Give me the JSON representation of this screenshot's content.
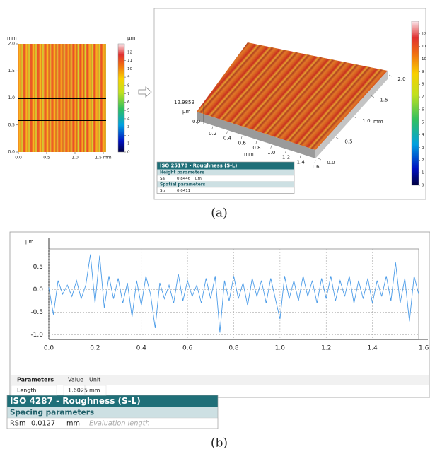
{
  "panel_a": {
    "map_2d": {
      "y_unit": "mm",
      "color_unit": "µm",
      "ylim": [
        0,
        2
      ],
      "yticks": [
        {
          "value": 0,
          "label": "0.0"
        },
        {
          "value": 0.5,
          "label": "0.5"
        },
        {
          "value": 1,
          "label": "1.0"
        },
        {
          "value": 1.5,
          "label": "1.5"
        },
        {
          "value": 2,
          "label": "2.0"
        }
      ],
      "xlim": [
        0,
        1.55
      ],
      "xticks": [
        {
          "value": 0,
          "label": "0.0"
        },
        {
          "value": 0.5,
          "label": "0.5"
        },
        {
          "value": 1,
          "label": "1.0"
        },
        {
          "value": 1.5,
          "label": "1.5 mm"
        }
      ],
      "clim": [
        0,
        13
      ],
      "cticks": [
        0,
        1,
        2,
        3,
        4,
        5,
        6,
        7,
        8,
        9,
        10,
        11,
        12
      ]
    },
    "map_3d": {
      "z_max_label": "12.9859",
      "z_unit": "µm",
      "z_min_label": "0.0",
      "x_unit": "mm",
      "y_unit": "mm",
      "xlim": [
        0,
        1.6
      ],
      "xticks": [
        {
          "value": 0,
          "label": "0.0"
        },
        {
          "value": 0.2,
          "label": "0.2"
        },
        {
          "value": 0.4,
          "label": "0.4"
        },
        {
          "value": 0.6,
          "label": "0.6"
        },
        {
          "value": 0.8,
          "label": "0.8"
        },
        {
          "value": 1,
          "label": "1.0"
        },
        {
          "value": 1.2,
          "label": "1.2"
        },
        {
          "value": 1.4,
          "label": "1.4"
        },
        {
          "value": 1.6,
          "label": "1.6"
        }
      ],
      "ylim": [
        0,
        2
      ],
      "yticks": [
        {
          "value": 0,
          "label": "0.0"
        },
        {
          "value": 0.5,
          "label": "0.5"
        },
        {
          "value": 1,
          "label": "1.0"
        },
        {
          "value": 1.5,
          "label": "1.5"
        },
        {
          "value": 2,
          "label": "2.0"
        }
      ],
      "clim": [
        0,
        13
      ],
      "cticks": [
        0,
        1,
        2,
        3,
        4,
        5,
        6,
        7,
        8,
        9,
        10,
        11,
        12
      ]
    },
    "table": {
      "title": "ISO 25178 - Roughness (S-L)",
      "sections": [
        {
          "header": "Height parameters",
          "rows": [
            [
              "Sa",
              "0.8446",
              "µm"
            ]
          ]
        },
        {
          "header": "Spatial parameters",
          "rows": [
            [
              "Str",
              "0.0411"
            ]
          ]
        }
      ]
    },
    "caption": "(a)"
  },
  "chart_data": {
    "type": "line",
    "y_unit": "µm",
    "color": "#4a9be8",
    "xlim": [
      0,
      1.6
    ],
    "xticks": [
      {
        "value": 0,
        "label": "0.0"
      },
      0.2,
      0.4,
      0.6,
      0.8,
      {
        "value": 1,
        "label": "1.0"
      },
      1.2,
      1.4,
      {
        "value": 1.6,
        "label": "1.6 mm"
      }
    ],
    "ylim": [
      -1.1,
      0.9
    ],
    "yticks": [
      {
        "value": -1,
        "label": "-1.0"
      },
      -0.5,
      {
        "value": 0,
        "label": "0.0"
      },
      0.5
    ],
    "grid": true,
    "x": [
      0,
      0.02,
      0.04,
      0.06,
      0.08,
      0.1,
      0.12,
      0.14,
      0.16,
      0.18,
      0.2,
      0.22,
      0.24,
      0.26,
      0.28,
      0.3,
      0.32,
      0.34,
      0.36,
      0.38,
      0.4,
      0.42,
      0.44,
      0.46,
      0.48,
      0.5,
      0.52,
      0.54,
      0.56,
      0.58,
      0.6,
      0.62,
      0.64,
      0.66,
      0.68,
      0.7,
      0.72,
      0.74,
      0.76,
      0.78,
      0.8,
      0.82,
      0.84,
      0.86,
      0.88,
      0.9,
      0.92,
      0.94,
      0.96,
      0.98,
      1,
      1.02,
      1.04,
      1.06,
      1.08,
      1.1,
      1.12,
      1.14,
      1.16,
      1.18,
      1.2,
      1.22,
      1.24,
      1.26,
      1.28,
      1.3,
      1.32,
      1.34,
      1.36,
      1.38,
      1.4,
      1.42,
      1.44,
      1.46,
      1.48,
      1.5,
      1.52,
      1.54,
      1.56,
      1.58,
      1.6
    ],
    "values": [
      0.05,
      -0.55,
      0.2,
      -0.1,
      0.1,
      -0.15,
      0.2,
      -0.2,
      0.1,
      0.78,
      -0.3,
      0.75,
      -0.4,
      0.3,
      -0.2,
      0.25,
      -0.3,
      0.15,
      -0.6,
      0.2,
      -0.35,
      0.3,
      -0.1,
      -0.85,
      0.15,
      -0.2,
      0.1,
      -0.3,
      0.35,
      -0.25,
      0.2,
      -0.15,
      0.1,
      -0.3,
      0.25,
      -0.2,
      0.3,
      -0.95,
      0.2,
      -0.25,
      0.3,
      -0.2,
      0.15,
      -0.35,
      0.25,
      -0.15,
      0.2,
      -0.3,
      0.25,
      -0.2,
      -0.65,
      0.3,
      -0.2,
      0.2,
      -0.25,
      0.3,
      -0.15,
      0.2,
      -0.3,
      0.25,
      -0.2,
      0.3,
      -0.25,
      0.2,
      -0.15,
      0.3,
      -0.3,
      0.2,
      -0.2,
      0.25,
      -0.3,
      0.2,
      -0.15,
      0.3,
      -0.25,
      0.6,
      -0.3,
      0.25,
      -0.7,
      0.3,
      -0.1
    ]
  },
  "panel_b": {
    "param_table": {
      "headers": [
        "Parameters",
        "Value",
        "Unit"
      ],
      "rows": [
        [
          "Length",
          "1.6025",
          "mm"
        ]
      ]
    },
    "iso_table": {
      "title": "ISO 4287 - Roughness (S-L)",
      "sections": [
        {
          "header": "Spacing parameters",
          "rows": [
            [
              "RSm",
              "0.0127",
              "mm",
              "Evaluation length"
            ]
          ]
        }
      ]
    },
    "caption": "(b)"
  }
}
